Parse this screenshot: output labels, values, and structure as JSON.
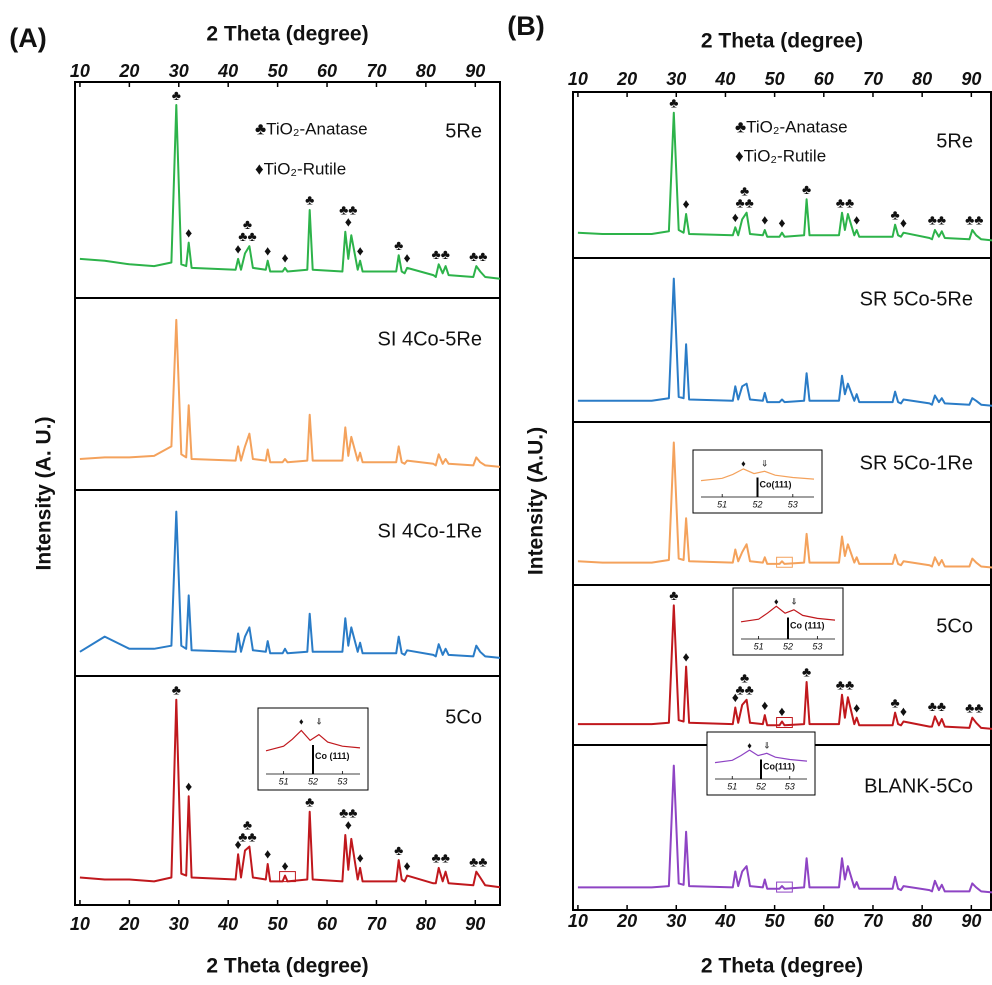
{
  "chart_data": [
    {
      "type": "line",
      "panel_label": "(A)",
      "x_label": "2 Theta (degree)",
      "y_label": "Intensity (A. U.)",
      "xlim": [
        9,
        95
      ],
      "xticks": [
        10,
        20,
        30,
        40,
        50,
        60,
        70,
        80,
        90
      ],
      "ylim": [
        0,
        105
      ],
      "x": [
        10,
        15,
        20,
        25,
        28.5,
        29.5,
        30.5,
        31.5,
        32,
        32.6,
        41.5,
        42,
        42.6,
        43.4,
        44.3,
        45,
        47.6,
        48,
        48.5,
        51,
        51.5,
        52,
        56,
        56.5,
        57.1,
        63.1,
        63.7,
        64.3,
        64.9,
        66.2,
        66.7,
        67.2,
        74,
        74.5,
        75.1,
        75.7,
        76.2,
        81.5,
        82,
        82.6,
        83.4,
        84,
        84.6,
        89.6,
        90.2,
        91,
        92,
        95
      ],
      "legend": [
        "♣TiO₂-Anatase",
        "♦TiO₂-Rutile"
      ],
      "markers": [
        {
          "x": 29.5,
          "symbol": "♣"
        },
        {
          "x": 32,
          "symbol": "♦"
        },
        {
          "x": 42,
          "symbol": "♦"
        },
        {
          "x": 43.9,
          "symbol": "♣♣"
        },
        {
          "x": 43.9,
          "symbol": "♣"
        },
        {
          "x": 48,
          "symbol": "♦"
        },
        {
          "x": 51.5,
          "symbol": "♦"
        },
        {
          "x": 56.5,
          "symbol": "♣"
        },
        {
          "x": 64.3,
          "symbol": "♦"
        },
        {
          "x": 64.3,
          "symbol": "♣♣"
        },
        {
          "x": 66.7,
          "symbol": "♦"
        },
        {
          "x": 74.5,
          "symbol": "♣"
        },
        {
          "x": 76.2,
          "symbol": "♦"
        },
        {
          "x": 83,
          "symbol": "♣♣"
        },
        {
          "x": 90.6,
          "symbol": "♣♣"
        }
      ],
      "series": [
        {
          "name": "5Re",
          "color": "#2db34a",
          "phase_marks": true,
          "values": [
            15,
            14,
            12,
            11,
            13,
            100,
            12,
            11,
            24,
            10,
            9,
            15,
            9,
            18,
            22,
            10,
            9,
            14,
            8,
            8,
            10,
            8,
            9,
            42,
            9,
            8,
            30,
            15,
            28,
            9,
            14,
            8,
            8,
            17,
            8,
            7,
            10,
            6,
            5,
            12,
            7,
            11,
            6,
            5,
            11,
            8,
            5,
            4
          ]
        },
        {
          "name": "SI 4Co-5Re",
          "color": "#f4a25c",
          "values": [
            12,
            13,
            13,
            14,
            20,
            100,
            15,
            13,
            46,
            12,
            11,
            20,
            11,
            20,
            28,
            12,
            11,
            18,
            10,
            10,
            12,
            10,
            11,
            40,
            11,
            11,
            32,
            14,
            26,
            11,
            16,
            10,
            10,
            20,
            10,
            9,
            11,
            9,
            8,
            15,
            9,
            12,
            9,
            8,
            13,
            10,
            8,
            7
          ]
        },
        {
          "name": "SI 4Co-1Re",
          "color": "#2a7cc7",
          "values": [
            8,
            18,
            10,
            10,
            12,
            100,
            12,
            10,
            45,
            9,
            8,
            20,
            8,
            18,
            24,
            9,
            8,
            15,
            7,
            7,
            10,
            7,
            8,
            33,
            8,
            8,
            30,
            12,
            24,
            8,
            14,
            7,
            7,
            18,
            7,
            6,
            9,
            6,
            5,
            13,
            6,
            10,
            6,
            5,
            12,
            8,
            5,
            4
          ]
        },
        {
          "name": "5Co",
          "color": "#c0181d",
          "phase_marks": true,
          "values": [
            8,
            7,
            7,
            6,
            8,
            100,
            10,
            9,
            50,
            8,
            7,
            20,
            8,
            22,
            24,
            8,
            7,
            15,
            6,
            6,
            9,
            6,
            7,
            42,
            7,
            6,
            30,
            12,
            28,
            7,
            13,
            6,
            6,
            17,
            7,
            6,
            9,
            5,
            5,
            13,
            6,
            11,
            5,
            4,
            11,
            8,
            4,
            3
          ],
          "inset": {
            "xlim": [
              50.4,
              53.6
            ],
            "xticks": [
              51,
              52,
              53
            ],
            "ylim": [
              0,
              100
            ],
            "x": [
              50.4,
              51,
              51.3,
              51.6,
              51.9,
              52.2,
              52.5,
              53,
              53.6
            ],
            "values": [
              40,
              48,
              60,
              75,
              58,
              68,
              55,
              48,
              45
            ],
            "reference_x": 52,
            "reference_label": "Co (111)",
            "marks": [
              {
                "x": 51.6,
                "symbol": "♦"
              },
              {
                "x": 52.2,
                "symbol": "⇓"
              }
            ]
          }
        }
      ]
    },
    {
      "type": "line",
      "panel_label": "(B)",
      "x_label": "2 Theta (degree)",
      "y_label": "Intensity (A.U.)",
      "xlim": [
        9,
        94
      ],
      "xticks": [
        10,
        20,
        30,
        40,
        50,
        60,
        70,
        80,
        90
      ],
      "ylim": [
        0,
        105
      ],
      "x": [
        10,
        15,
        20,
        25,
        28.5,
        29.5,
        30.5,
        31.5,
        32,
        32.6,
        41.5,
        42,
        42.6,
        43.4,
        44.3,
        45,
        47.6,
        48,
        48.5,
        51,
        51.5,
        52,
        56,
        56.5,
        57.1,
        63.1,
        63.7,
        64.3,
        64.9,
        66.2,
        66.7,
        67.2,
        74,
        74.5,
        75.1,
        75.7,
        76.2,
        81.5,
        82,
        82.6,
        83.4,
        84,
        84.6,
        89.6,
        90.2,
        91,
        92,
        95
      ],
      "legend": [
        "♣TiO₂-Anatase",
        "♦TiO₂-Rutile"
      ],
      "markers": [
        {
          "x": 29.5,
          "symbol": "♣"
        },
        {
          "x": 32,
          "symbol": "♦"
        },
        {
          "x": 42,
          "symbol": "♦"
        },
        {
          "x": 43.9,
          "symbol": "♣♣"
        },
        {
          "x": 43.9,
          "symbol": "♣"
        },
        {
          "x": 48,
          "symbol": "♦"
        },
        {
          "x": 51.5,
          "symbol": "♦"
        },
        {
          "x": 56.5,
          "symbol": "♣"
        },
        {
          "x": 64.3,
          "symbol": "♣♣"
        },
        {
          "x": 66.7,
          "symbol": "♦"
        },
        {
          "x": 74.5,
          "symbol": "♣"
        },
        {
          "x": 76.2,
          "symbol": "♦"
        },
        {
          "x": 83,
          "symbol": "♣♣"
        },
        {
          "x": 90.6,
          "symbol": "♣♣"
        }
      ],
      "series": [
        {
          "name": "5Re",
          "color": "#2db34a",
          "phase_marks": true,
          "values": [
            10,
            9,
            9,
            9,
            11,
            100,
            12,
            10,
            24,
            9,
            8,
            14,
            8,
            20,
            25,
            9,
            8,
            12,
            7,
            7,
            10,
            7,
            8,
            35,
            8,
            8,
            25,
            12,
            24,
            8,
            12,
            7,
            7,
            16,
            8,
            7,
            10,
            6,
            5,
            12,
            7,
            11,
            6,
            5,
            12,
            8,
            5,
            4
          ]
        },
        {
          "name": "SR 5Co-5Re",
          "color": "#2a7cc7",
          "values": [
            7,
            7,
            7,
            7,
            9,
            100,
            10,
            9,
            50,
            8,
            7,
            18,
            8,
            18,
            20,
            8,
            7,
            13,
            6,
            6,
            8,
            6,
            7,
            28,
            7,
            7,
            26,
            12,
            20,
            7,
            12,
            6,
            6,
            14,
            6,
            5,
            8,
            5,
            4,
            11,
            6,
            9,
            5,
            4,
            9,
            7,
            4,
            3
          ]
        },
        {
          "name": "SR 5Co-1Re",
          "color": "#f4a25c",
          "values": [
            9,
            8,
            8,
            8,
            10,
            100,
            11,
            10,
            42,
            9,
            8,
            18,
            9,
            16,
            22,
            9,
            8,
            12,
            7,
            7,
            9,
            7,
            8,
            30,
            8,
            8,
            28,
            13,
            22,
            8,
            12,
            7,
            7,
            14,
            7,
            6,
            9,
            6,
            5,
            12,
            6,
            10,
            5,
            5,
            11,
            8,
            5,
            4
          ],
          "inset": {
            "xlim": [
              50.4,
              53.6
            ],
            "xticks": [
              51,
              52,
              53
            ],
            "ylim": [
              0,
              100
            ],
            "x": [
              50.4,
              51,
              51.3,
              51.6,
              51.9,
              52.2,
              52.5,
              53,
              53.6
            ],
            "values": [
              42,
              48,
              58,
              72,
              60,
              66,
              56,
              50,
              46
            ],
            "reference_x": 52,
            "reference_label": "Co(111)",
            "marks": [
              {
                "x": 51.6,
                "symbol": "♦"
              },
              {
                "x": 52.2,
                "symbol": "⇓"
              }
            ]
          }
        },
        {
          "name": "5Co",
          "color": "#c0181d",
          "phase_marks": true,
          "values": [
            7,
            7,
            7,
            7,
            8,
            100,
            10,
            9,
            52,
            8,
            7,
            20,
            8,
            22,
            26,
            8,
            7,
            14,
            6,
            6,
            9,
            6,
            7,
            40,
            7,
            7,
            30,
            12,
            28,
            7,
            12,
            6,
            6,
            16,
            7,
            6,
            9,
            5,
            5,
            13,
            6,
            11,
            5,
            4,
            12,
            8,
            4,
            3
          ],
          "inset": {
            "xlim": [
              50.4,
              53.6
            ],
            "xticks": [
              51,
              52,
              53
            ],
            "ylim": [
              0,
              100
            ],
            "x": [
              50.4,
              51,
              51.3,
              51.6,
              51.9,
              52.2,
              52.5,
              53,
              53.6
            ],
            "values": [
              40,
              46,
              60,
              76,
              60,
              68,
              55,
              48,
              44
            ],
            "reference_x": 52,
            "reference_label": "Co (111)",
            "marks": [
              {
                "x": 51.6,
                "symbol": "♦"
              },
              {
                "x": 52.2,
                "symbol": "⇓"
              }
            ]
          }
        },
        {
          "name": "BLANK-5Co",
          "color": "#8e44c4",
          "values": [
            8,
            8,
            8,
            8,
            9,
            100,
            11,
            10,
            50,
            9,
            8,
            20,
            9,
            20,
            24,
            9,
            8,
            14,
            7,
            7,
            9,
            7,
            8,
            30,
            8,
            8,
            30,
            14,
            24,
            8,
            12,
            7,
            7,
            16,
            7,
            6,
            9,
            6,
            5,
            13,
            6,
            10,
            5,
            5,
            11,
            8,
            5,
            4
          ],
          "inset": {
            "xlim": [
              50.4,
              53.6
            ],
            "xticks": [
              51,
              52,
              53
            ],
            "ylim": [
              0,
              100
            ],
            "x": [
              50.4,
              51,
              51.3,
              51.6,
              51.9,
              52.2,
              52.5,
              53,
              53.6
            ],
            "values": [
              42,
              48,
              60,
              74,
              60,
              66,
              56,
              50,
              46
            ],
            "reference_x": 52,
            "reference_label": "Co(111)",
            "marks": [
              {
                "x": 51.6,
                "symbol": "♦"
              },
              {
                "x": 52.2,
                "symbol": "⇓"
              }
            ]
          }
        }
      ]
    }
  ]
}
